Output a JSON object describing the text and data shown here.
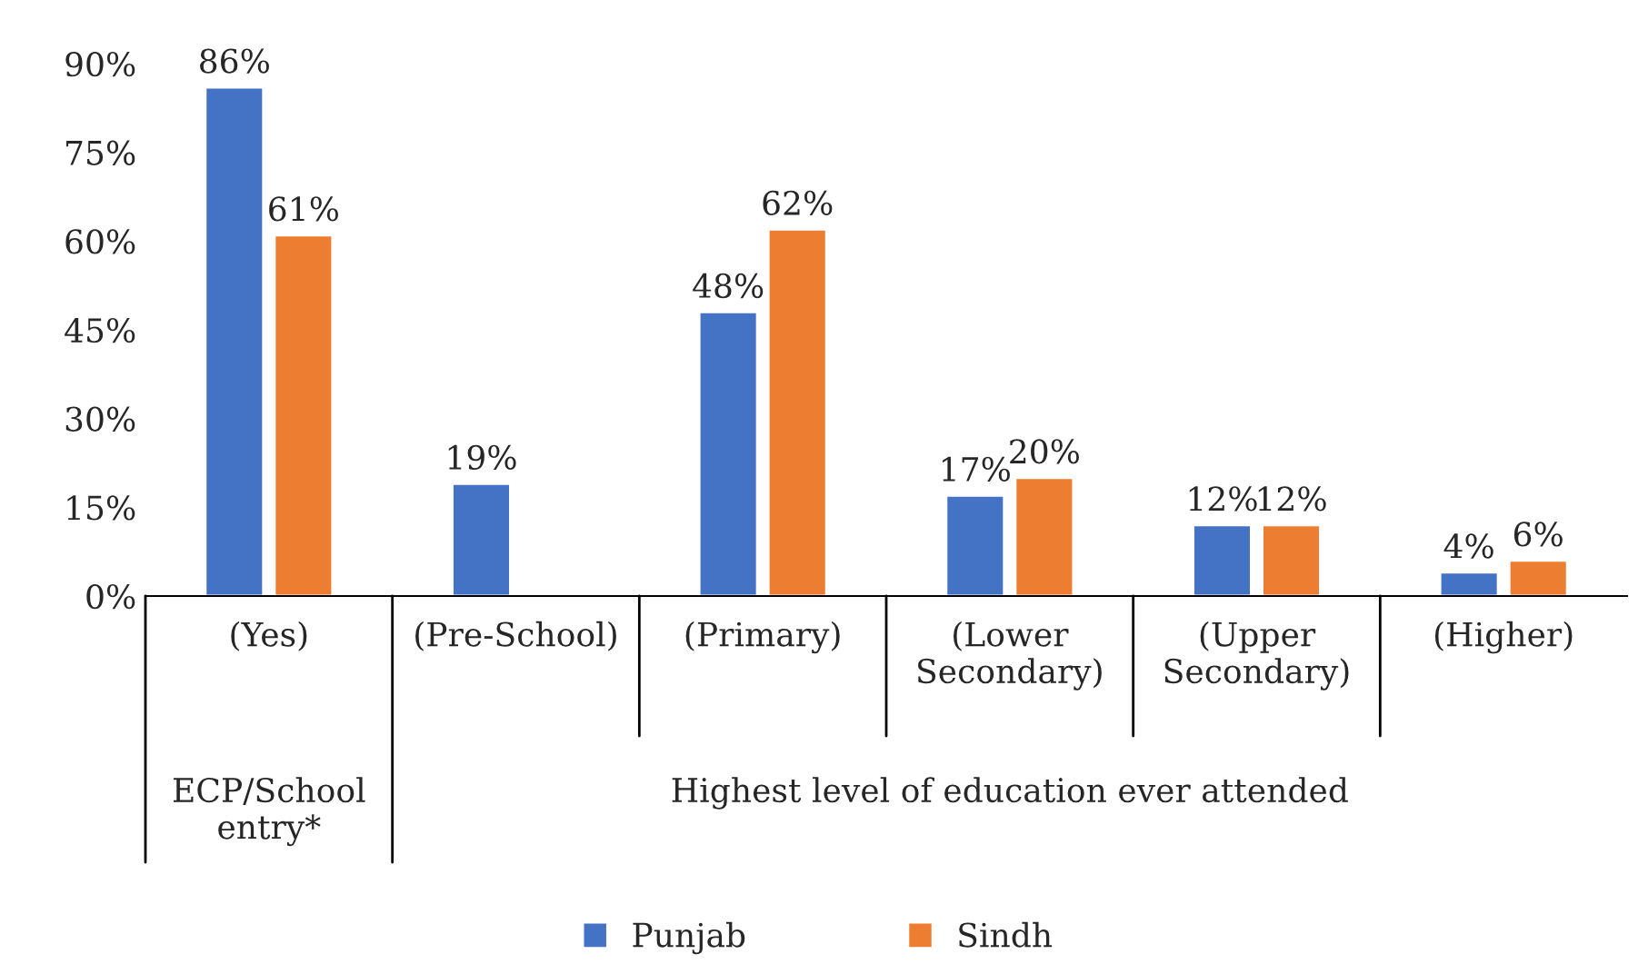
{
  "chart_data": {
    "type": "bar",
    "categories": [
      "(Yes)",
      "(Pre-School)",
      "(Primary)",
      "(Lower Secondary)",
      "(Upper Secondary)",
      "(Higher)"
    ],
    "series": [
      {
        "name": "Punjab",
        "color": "#4472c4",
        "values": [
          86,
          19,
          48,
          17,
          12,
          4
        ],
        "value_labels": [
          "86%",
          "19%",
          "48%",
          "17%",
          "12%",
          "4%"
        ]
      },
      {
        "name": "Sindh",
        "color": "#ed7d31",
        "values": [
          61,
          null,
          62,
          20,
          12,
          6
        ],
        "value_labels": [
          "61%",
          null,
          "62%",
          "20%",
          "12%",
          "6%"
        ]
      }
    ],
    "ylim": [
      0,
      90
    ],
    "yticks": [
      {
        "value": 0,
        "label": "0%"
      },
      {
        "value": 15,
        "label": "15%"
      },
      {
        "value": 30,
        "label": "30%"
      },
      {
        "value": 45,
        "label": "45%"
      },
      {
        "value": 60,
        "label": "60%"
      },
      {
        "value": 75,
        "label": "75%"
      },
      {
        "value": 90,
        "label": "90%"
      }
    ],
    "annotations": [
      "ECP/School entry*",
      "Highest level of education ever attended"
    ],
    "grid": false,
    "legend": "bottom"
  }
}
